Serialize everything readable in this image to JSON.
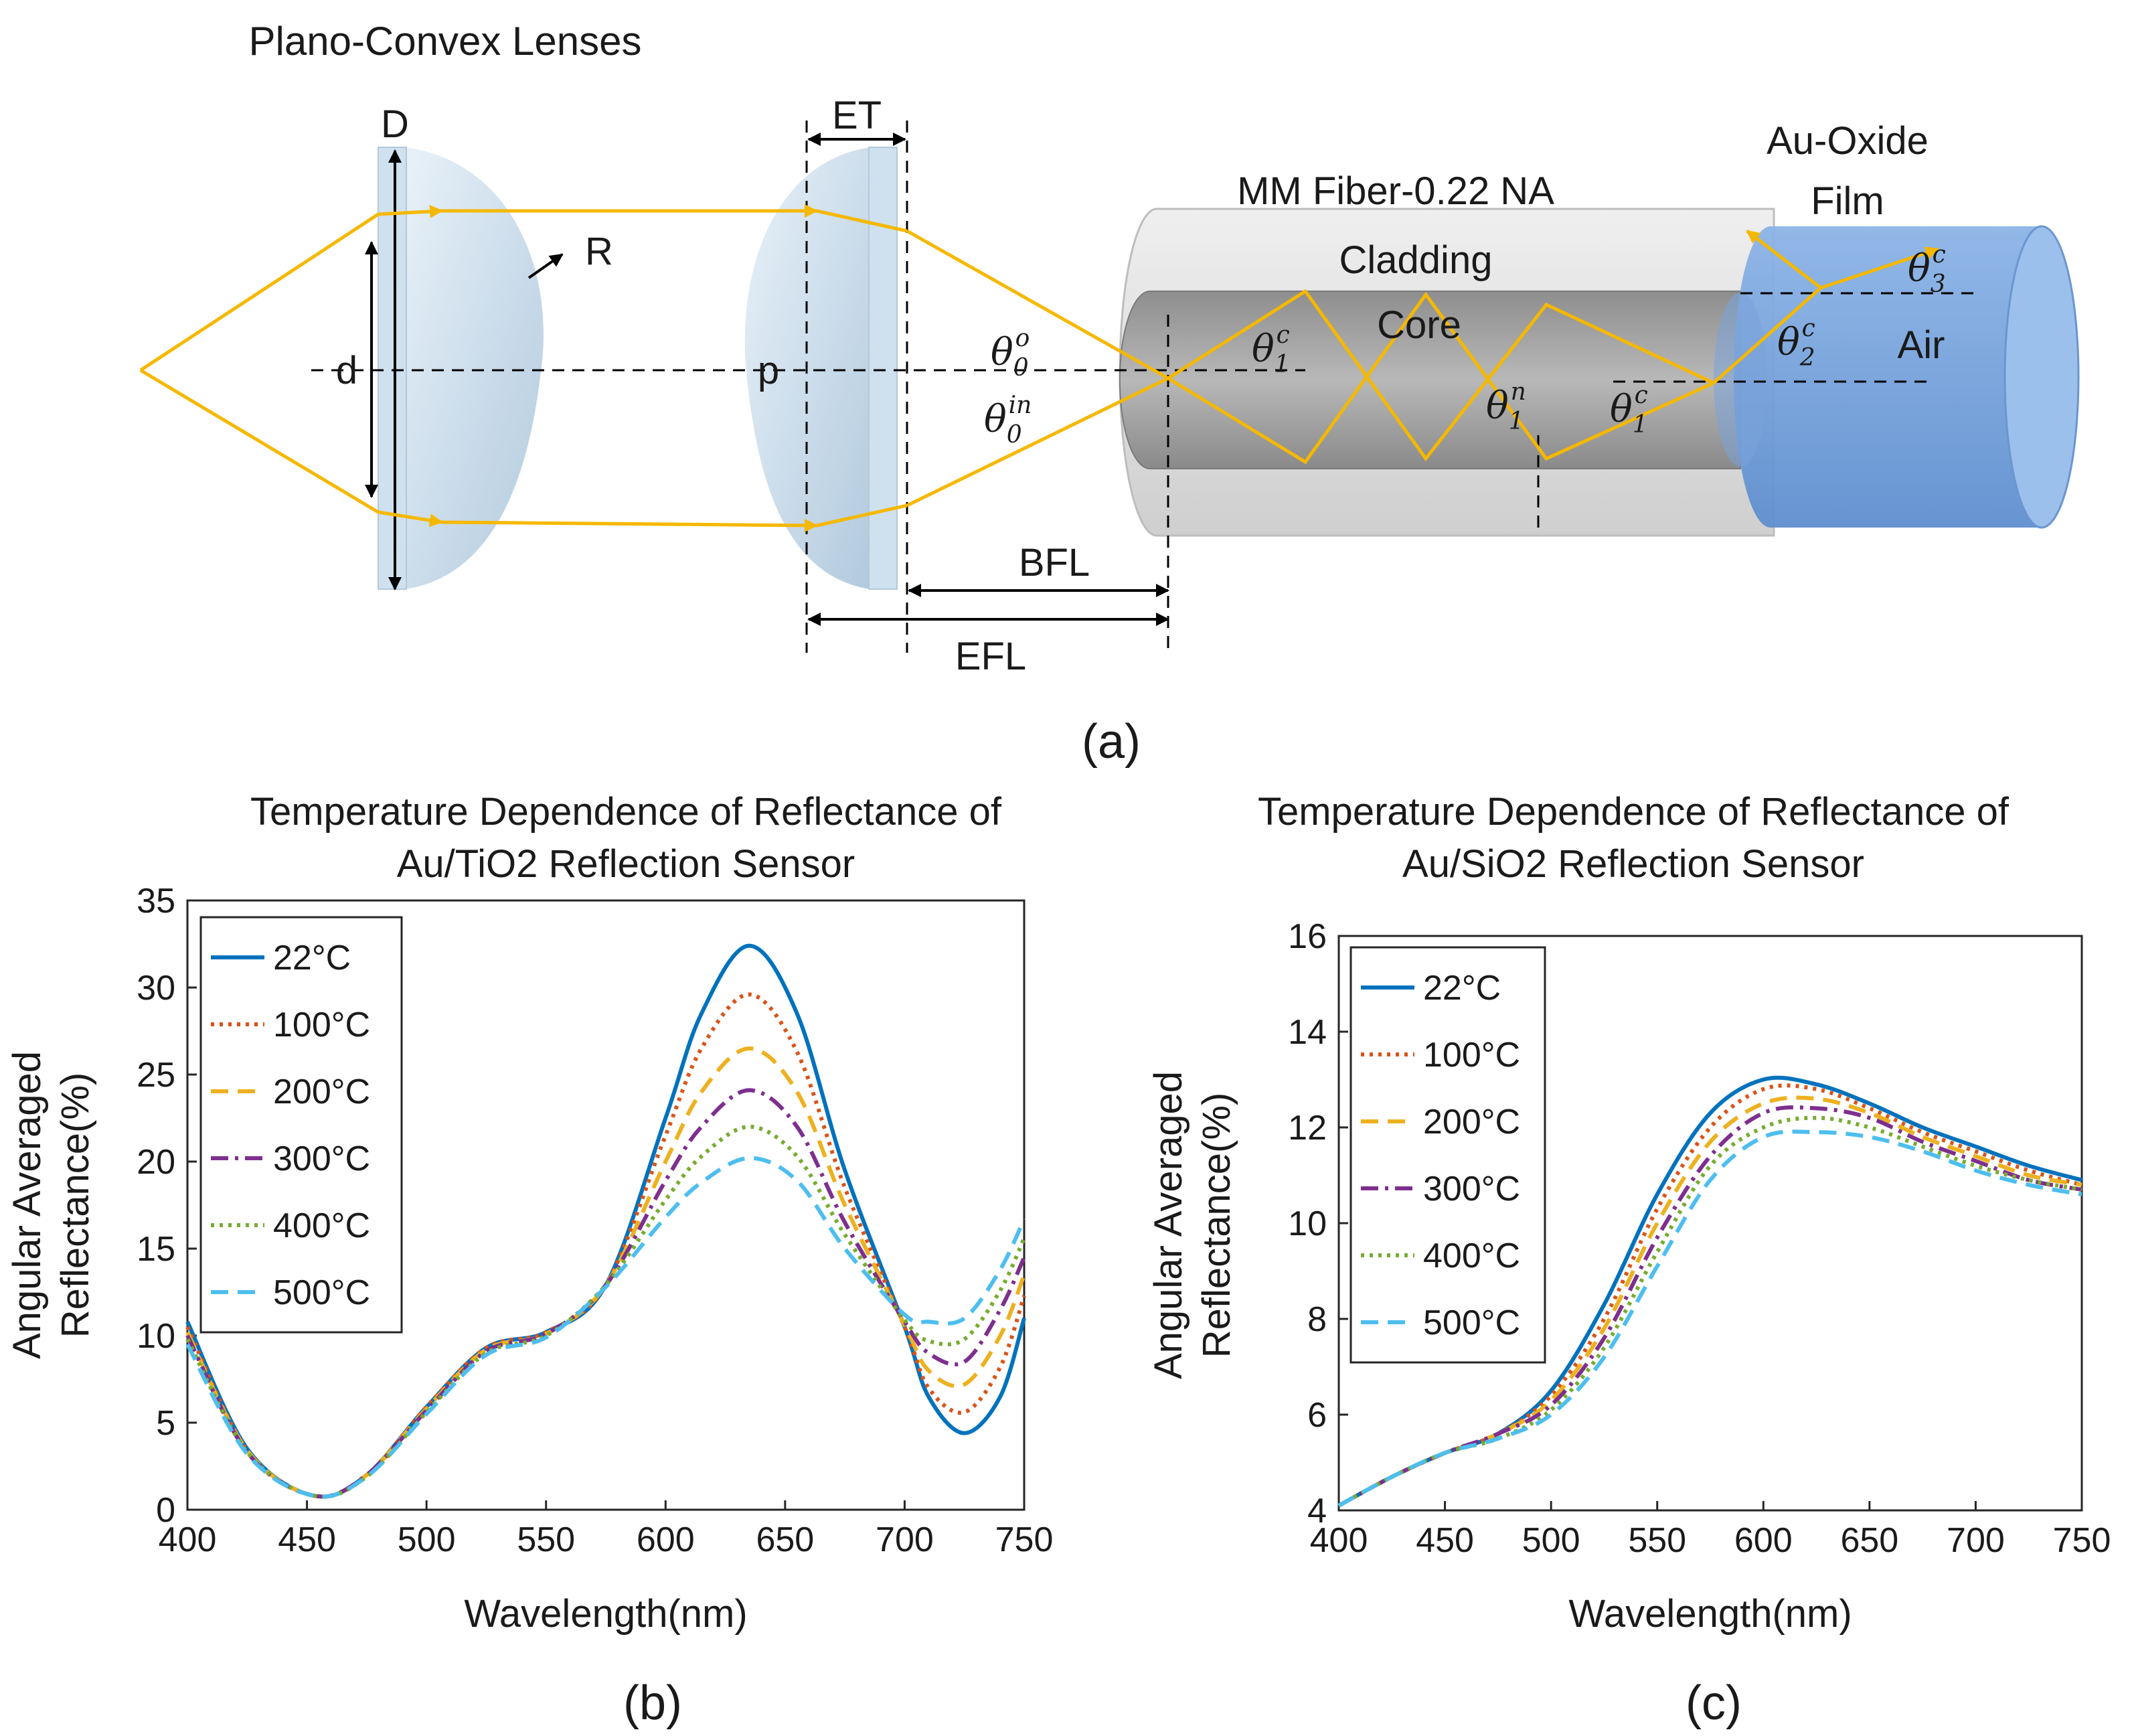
{
  "diagram": {
    "lens_title": "Plano-Convex Lenses",
    "label_D": "D",
    "label_d": "d",
    "label_R": "R",
    "label_p": "p",
    "label_ET": "ET",
    "label_BFL": "BFL",
    "label_EFL": "EFL",
    "fiber_title": "MM Fiber-0.22 NA",
    "cladding": "Cladding",
    "core": "Core",
    "film_title_1": "Au-Oxide",
    "film_title_2": "Film",
    "air": "Air",
    "caption": "(a)",
    "angles": {
      "theta0o": {
        "base": "θ",
        "sub": "0",
        "sup": "o"
      },
      "theta0in": {
        "base": "θ",
        "sub": "0",
        "sup": "in"
      },
      "theta1c_a": {
        "base": "θ",
        "sub": "1",
        "sup": "c"
      },
      "theta1n": {
        "base": "θ",
        "sub": "1",
        "sup": "n"
      },
      "theta1c_b": {
        "base": "θ",
        "sub": "1",
        "sup": "c"
      },
      "theta2c": {
        "base": "θ",
        "sub": "2",
        "sup": "c"
      },
      "theta3c": {
        "base": "θ",
        "sub": "3",
        "sup": "c"
      }
    },
    "colors": {
      "ray": "#f5b800",
      "lens": "#c9dcea",
      "fiber_outer": "#dcdcdc",
      "fiber_core": "#a6a6a6",
      "film": "#6f9fd8"
    }
  },
  "chart_data": [
    {
      "type": "line",
      "title_line1": "Temperature Dependence of Reflectance of",
      "title_line2": "Au/TiO2 Reflection Sensor",
      "xlabel": "Wavelength(nm)",
      "ylabel_line1": "Angular Averaged",
      "ylabel_line2": "Reflectance(%)",
      "caption": "(b)",
      "xlim": [
        400,
        750
      ],
      "ylim": [
        0,
        35
      ],
      "xticks": [
        400,
        450,
        500,
        550,
        600,
        650,
        700,
        750
      ],
      "yticks": [
        0,
        5,
        10,
        15,
        20,
        25,
        30,
        35
      ],
      "legend_position": "top-left",
      "x": [
        400,
        425,
        453,
        475,
        500,
        525,
        550,
        575,
        600,
        615,
        635,
        655,
        675,
        700,
        710,
        725,
        740,
        750
      ],
      "series": [
        {
          "name": "22°C",
          "color": "#0072bd",
          "dash": "solid",
          "values": [
            10.8,
            3.5,
            0.8,
            2.0,
            5.9,
            9.3,
            10.2,
            12.9,
            22.5,
            28.5,
            32.4,
            28.5,
            19.5,
            10.5,
            6.5,
            4.4,
            6.5,
            11.0
          ]
        },
        {
          "name": "100°C",
          "color": "#d95319",
          "dash": "dot",
          "values": [
            10.5,
            3.4,
            0.8,
            2.0,
            5.9,
            9.3,
            10.2,
            12.9,
            21.5,
            26.5,
            29.6,
            26.3,
            18.5,
            10.5,
            7.0,
            5.6,
            8.2,
            12.3
          ]
        },
        {
          "name": "200°C",
          "color": "#edb120",
          "dash": "dash",
          "values": [
            10.2,
            3.4,
            0.8,
            2.0,
            5.8,
            9.2,
            10.1,
            12.9,
            20.0,
            24.0,
            26.5,
            24.0,
            17.5,
            10.6,
            8.0,
            7.2,
            10.0,
            13.5
          ]
        },
        {
          "name": "300°C",
          "color": "#7e2f8e",
          "dash": "dashdot",
          "values": [
            10.0,
            3.3,
            0.8,
            2.0,
            5.7,
            9.1,
            10.1,
            12.9,
            18.9,
            22.0,
            24.1,
            22.0,
            16.5,
            10.8,
            9.0,
            8.5,
            11.5,
            14.5
          ]
        },
        {
          "name": "400°C",
          "color": "#77ac30",
          "dash": "dot",
          "values": [
            9.8,
            3.3,
            0.8,
            1.9,
            5.6,
            9.0,
            10.0,
            12.9,
            17.8,
            20.3,
            22.0,
            20.3,
            15.8,
            10.9,
            9.7,
            9.8,
            12.6,
            15.6
          ]
        },
        {
          "name": "500°C",
          "color": "#4dbeee",
          "dash": "dash",
          "values": [
            9.5,
            3.2,
            0.8,
            1.9,
            5.5,
            8.9,
            9.9,
            12.8,
            16.8,
            18.8,
            20.2,
            18.9,
            15.0,
            11.2,
            10.8,
            11.0,
            13.8,
            16.7
          ]
        }
      ]
    },
    {
      "type": "line",
      "title_line1": "Temperature Dependence of Reflectance of",
      "title_line2": "Au/SiO2 Reflection Sensor",
      "xlabel": "Wavelength(nm)",
      "ylabel_line1": "Angular Averaged",
      "ylabel_line2": "Reflectance(%)",
      "caption": "(c)",
      "xlim": [
        400,
        750
      ],
      "ylim": [
        4,
        16
      ],
      "xticks": [
        400,
        450,
        500,
        550,
        600,
        650,
        700,
        750
      ],
      "yticks": [
        4,
        6,
        8,
        10,
        12,
        14,
        16
      ],
      "legend_position": "top-left",
      "x": [
        400,
        425,
        450,
        475,
        500,
        525,
        550,
        575,
        600,
        625,
        650,
        675,
        700,
        725,
        750
      ],
      "series": [
        {
          "name": "22°C",
          "color": "#0072bd",
          "dash": "solid",
          "values": [
            4.1,
            4.7,
            5.2,
            5.6,
            6.5,
            8.3,
            10.6,
            12.3,
            13.0,
            12.9,
            12.5,
            12.0,
            11.6,
            11.2,
            10.9
          ]
        },
        {
          "name": "100°C",
          "color": "#d95319",
          "dash": "dot",
          "values": [
            4.1,
            4.7,
            5.2,
            5.6,
            6.4,
            8.0,
            10.3,
            12.0,
            12.8,
            12.8,
            12.4,
            11.9,
            11.5,
            11.1,
            10.8
          ]
        },
        {
          "name": "200°C",
          "color": "#edb120",
          "dash": "dash",
          "values": [
            4.1,
            4.7,
            5.2,
            5.6,
            6.3,
            7.8,
            10.0,
            11.7,
            12.5,
            12.6,
            12.3,
            11.8,
            11.4,
            11.0,
            10.8
          ]
        },
        {
          "name": "300°C",
          "color": "#7e2f8e",
          "dash": "dashdot",
          "values": [
            4.1,
            4.7,
            5.2,
            5.6,
            6.2,
            7.6,
            9.7,
            11.4,
            12.3,
            12.4,
            12.2,
            11.7,
            11.3,
            10.9,
            10.7
          ]
        },
        {
          "name": "400°C",
          "color": "#77ac30",
          "dash": "dot",
          "values": [
            4.1,
            4.7,
            5.2,
            5.5,
            6.1,
            7.4,
            9.4,
            11.2,
            12.0,
            12.2,
            12.0,
            11.6,
            11.2,
            10.9,
            10.7
          ]
        },
        {
          "name": "500°C",
          "color": "#4dbeee",
          "dash": "dash",
          "values": [
            4.1,
            4.7,
            5.2,
            5.5,
            6.0,
            7.2,
            9.1,
            10.9,
            11.8,
            11.9,
            11.8,
            11.5,
            11.1,
            10.8,
            10.6
          ]
        }
      ]
    }
  ]
}
